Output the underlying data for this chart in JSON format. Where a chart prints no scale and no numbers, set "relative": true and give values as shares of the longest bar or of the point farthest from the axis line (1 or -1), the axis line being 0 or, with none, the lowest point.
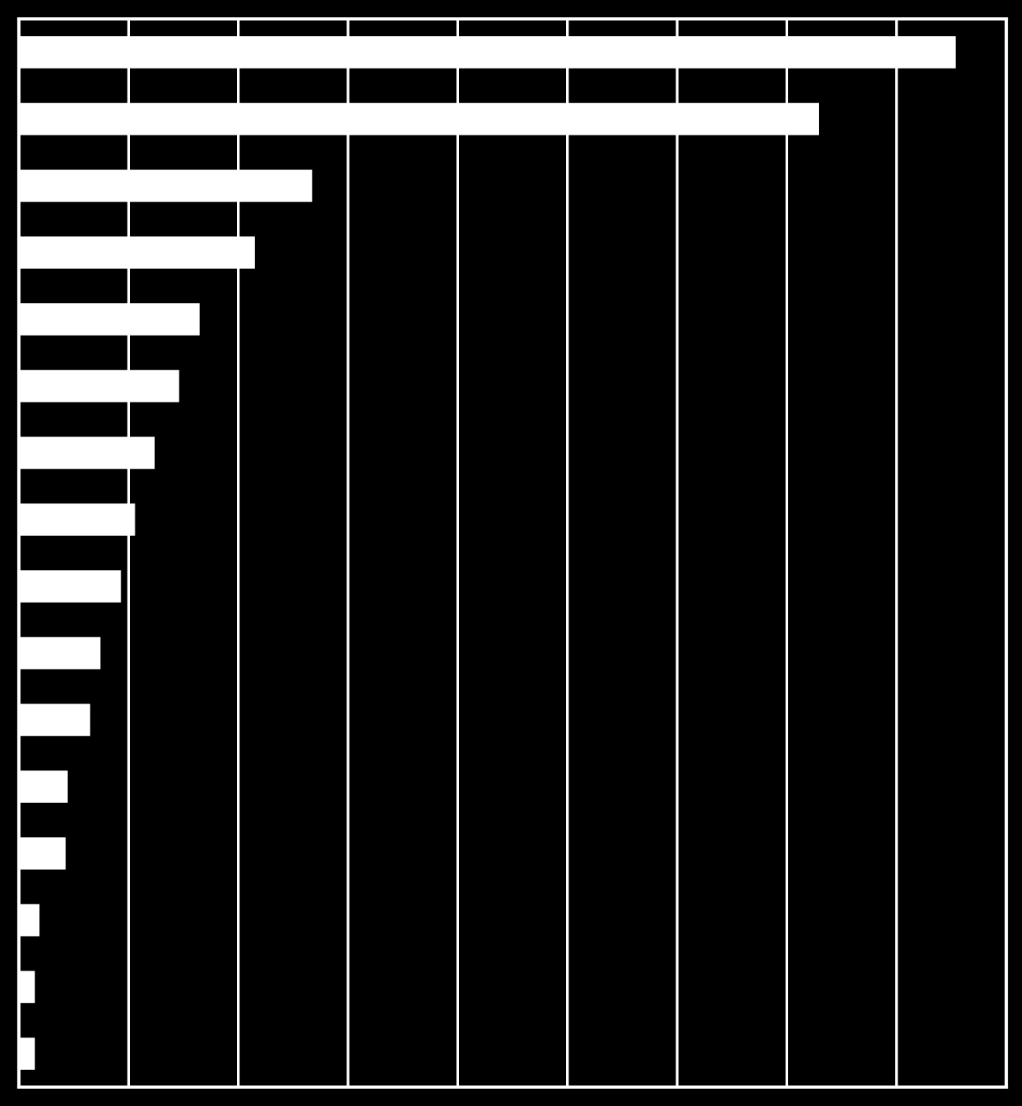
{
  "chart_data": {
    "type": "bar",
    "orientation": "horizontal",
    "relative": true,
    "grid": "x",
    "color": "#ffffff",
    "categories": [
      null,
      null,
      null,
      null,
      null,
      null,
      null,
      null,
      null,
      null,
      null,
      null,
      null,
      null,
      null,
      null
    ],
    "values": [
      1,
      0.854,
      0.313,
      0.252,
      0.193,
      0.171,
      0.145,
      0.124,
      0.109,
      0.087,
      0.076,
      0.052,
      0.05,
      0.022,
      0.017,
      0.017
    ]
  }
}
